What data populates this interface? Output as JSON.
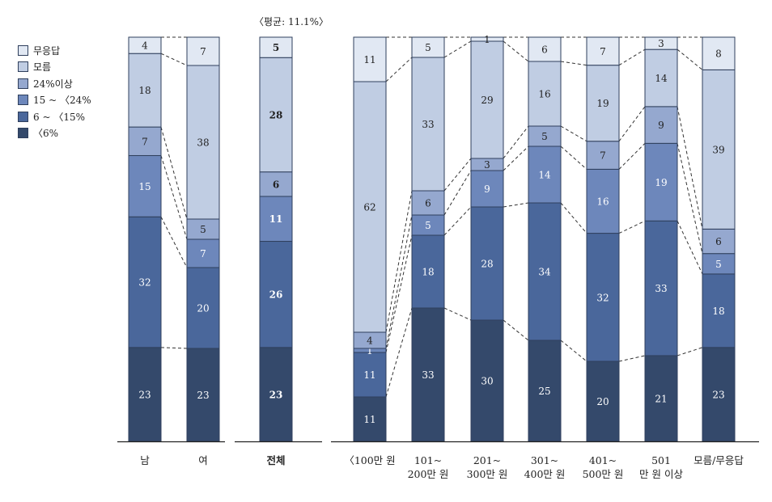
{
  "avg_note": "〈평균: 11.1%〉",
  "colors": [
    "#34496b",
    "#4a679b",
    "#6d87bb",
    "#95a8cf",
    "#c0cde3",
    "#e1e8f3"
  ],
  "legend": [
    {
      "label": "무응답",
      "color": "#e1e8f3"
    },
    {
      "label": "모름",
      "color": "#c0cde3"
    },
    {
      "label": "24%이상",
      "color": "#95a8cf"
    },
    {
      "label": "15 ~ 〈24%",
      "color": "#6d87bb"
    },
    {
      "label": "6 ~ 〈15%",
      "color": "#4a679b"
    },
    {
      "label": "〈6%",
      "color": "#34496b"
    }
  ],
  "chart_data": {
    "type": "bar",
    "stacked": true,
    "ylim": [
      0,
      100
    ],
    "series": [
      {
        "name": "〈6%",
        "values": [
          23,
          23,
          23,
          11,
          33,
          30,
          25,
          20,
          21,
          23
        ]
      },
      {
        "name": "6 ~ 〈15%",
        "values": [
          32,
          20,
          26,
          11,
          18,
          28,
          34,
          32,
          33,
          18
        ]
      },
      {
        "name": "15 ~ 〈24%",
        "values": [
          15,
          7,
          11,
          1,
          5,
          9,
          14,
          16,
          19,
          5
        ]
      },
      {
        "name": "24%이상",
        "values": [
          7,
          5,
          6,
          4,
          6,
          3,
          5,
          7,
          9,
          6
        ]
      },
      {
        "name": "모름",
        "values": [
          18,
          38,
          28,
          62,
          33,
          29,
          16,
          19,
          14,
          39
        ]
      },
      {
        "name": "무응답",
        "values": [
          4,
          7,
          5,
          11,
          5,
          1,
          6,
          7,
          3,
          8
        ]
      }
    ],
    "categories": [
      {
        "lines": [
          "남"
        ],
        "bold": false
      },
      {
        "lines": [
          "여"
        ],
        "bold": false
      },
      {
        "lines": [
          "전체"
        ],
        "bold": true
      },
      {
        "lines": [
          "〈100만 원"
        ],
        "bold": false
      },
      {
        "lines": [
          "101~",
          "200만 원"
        ],
        "bold": false
      },
      {
        "lines": [
          "201~",
          "300만 원"
        ],
        "bold": false
      },
      {
        "lines": [
          "301~",
          "400만 원"
        ],
        "bold": false
      },
      {
        "lines": [
          "401~",
          "500만 원"
        ],
        "bold": false
      },
      {
        "lines": [
          "501",
          "만 원 이상"
        ],
        "bold": false
      },
      {
        "lines": [
          "모름/무응답"
        ],
        "bold": false
      }
    ]
  }
}
